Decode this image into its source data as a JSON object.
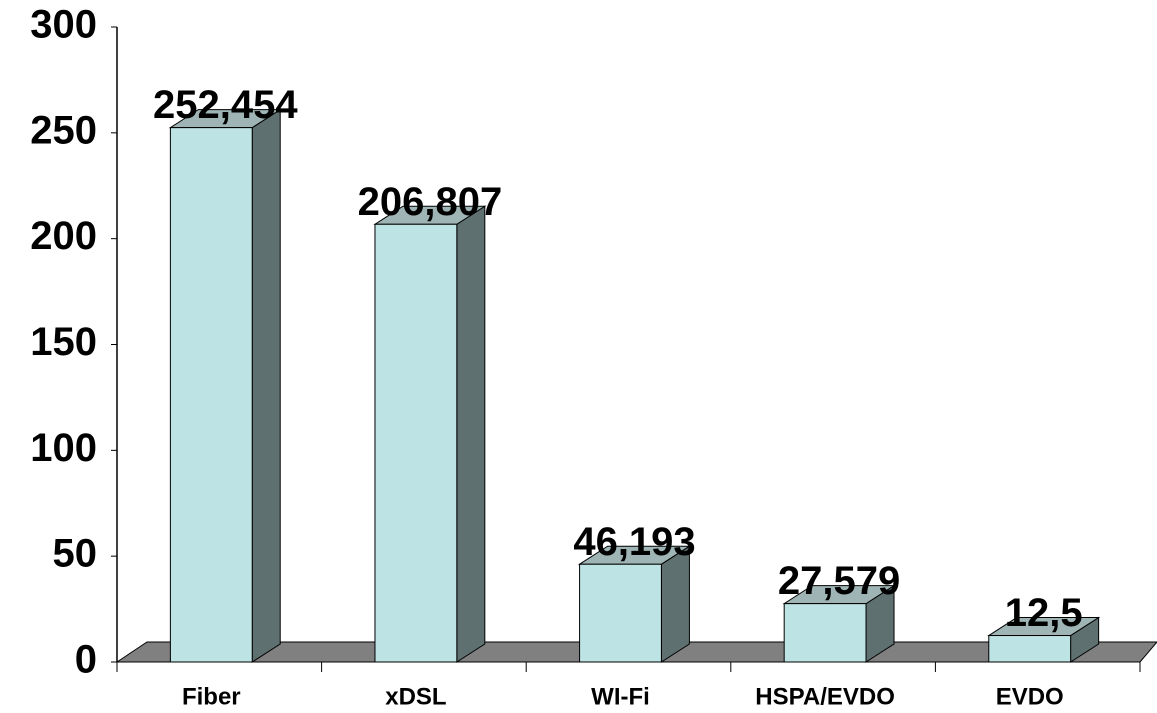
{
  "chart_data": {
    "type": "bar3d",
    "categories": [
      "Fiber",
      "xDSL",
      "WI-Fi",
      "HSPA/EVDO",
      "EVDO"
    ],
    "values": [
      252.454,
      206.807,
      46.193,
      27.579,
      12.5
    ],
    "value_labels": [
      "252,454",
      "206,807",
      "46,193",
      "27,579",
      "12,5"
    ],
    "color": "#bee3e5",
    "ylim": [
      0,
      300
    ],
    "yticks": [
      0,
      50,
      100,
      150,
      200,
      250,
      300
    ]
  }
}
